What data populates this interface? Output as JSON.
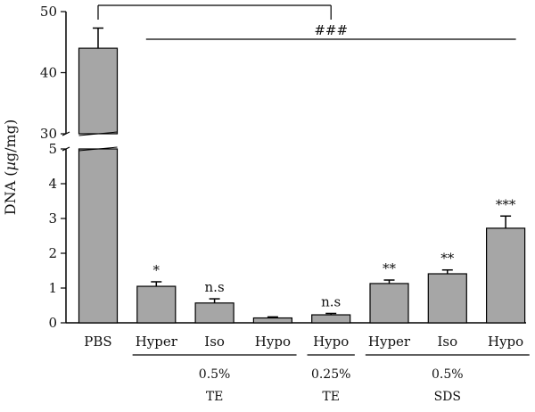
{
  "chart_data": {
    "type": "bar",
    "title": "",
    "xlabel": "",
    "ylabel": "DNA (µg/mg)",
    "ylabel_parts": [
      "DNA (",
      "µ",
      "g/mg)"
    ],
    "categories": [
      "PBS",
      "Hyper",
      "Iso",
      "Hypo",
      "Hypo",
      "Hyper",
      "Iso",
      "Hypo"
    ],
    "values": [
      44.0,
      1.05,
      0.57,
      0.14,
      0.23,
      1.13,
      1.41,
      2.72
    ],
    "errors": [
      3.3,
      0.13,
      0.12,
      0.03,
      0.04,
      0.1,
      0.11,
      0.35
    ],
    "annotations": [
      "",
      "*",
      "n.s",
      "",
      "n.s",
      "**",
      "**",
      "***"
    ],
    "bar_color": "#a6a6a6",
    "axis_break": {
      "lower": [
        0,
        5
      ],
      "upper": [
        30,
        50
      ]
    },
    "lower_ticks": [
      0,
      1,
      2,
      3,
      4,
      5
    ],
    "upper_ticks": [
      30,
      40,
      50
    ],
    "groups": [
      {
        "line1": "0.5%",
        "line2": "TE",
        "categories": [
          1,
          2,
          3
        ]
      },
      {
        "line1": "0.25%",
        "line2": "TE",
        "categories": [
          4
        ]
      },
      {
        "line1": "0.5%",
        "line2": "SDS",
        "categories": [
          5,
          6,
          7
        ]
      }
    ],
    "comparisons": [
      {
        "from": 0,
        "to": 4,
        "label": ""
      },
      {
        "from": 1,
        "to": 7,
        "label": "###"
      }
    ],
    "grid": false,
    "legend": "none"
  }
}
